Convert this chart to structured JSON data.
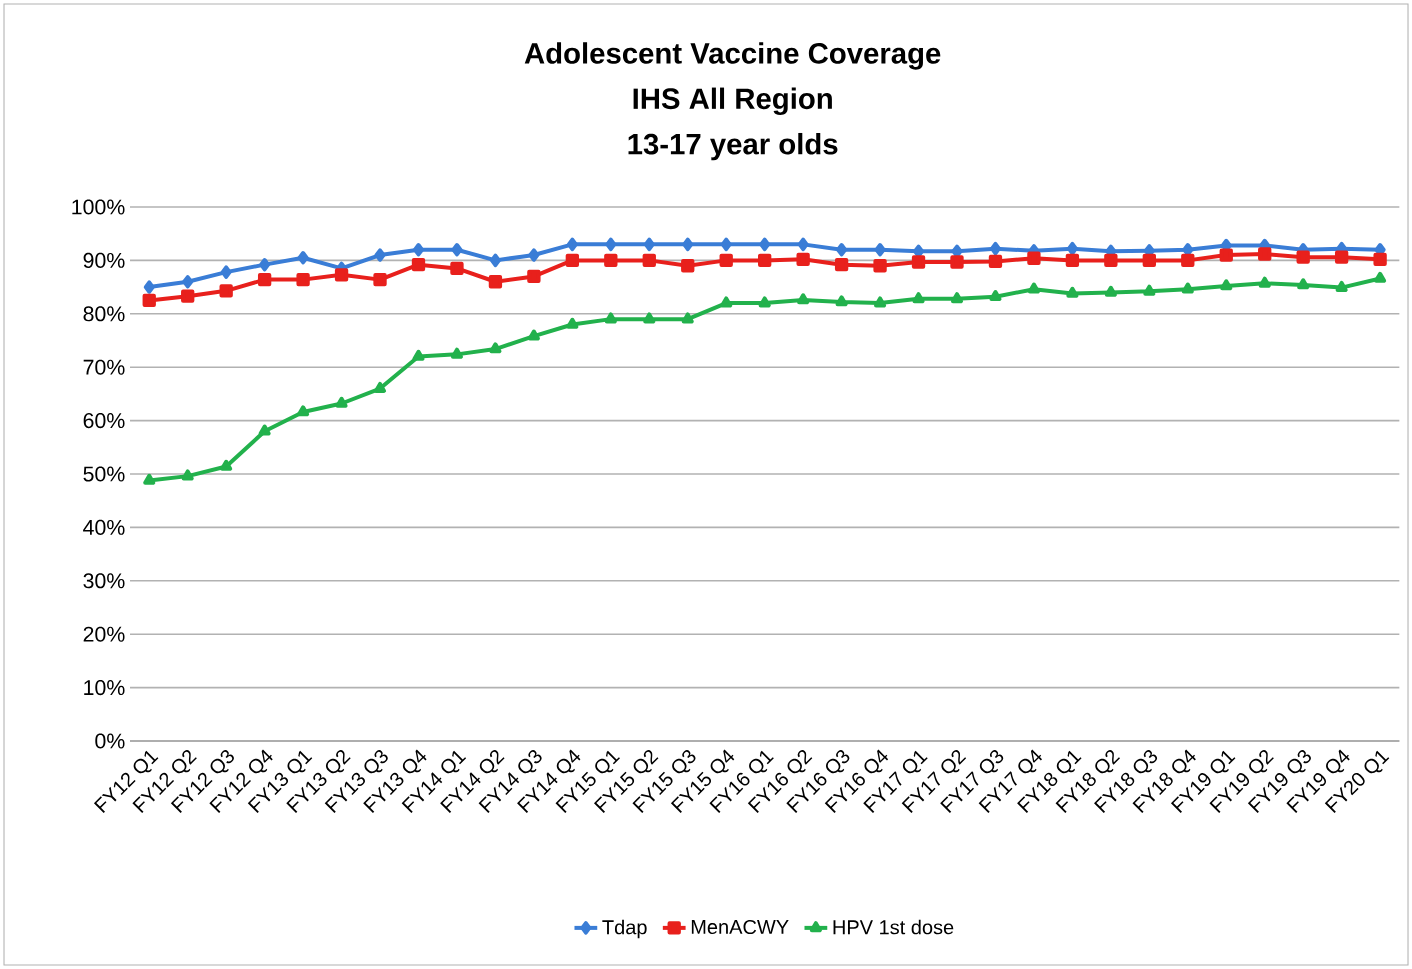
{
  "chart_data": {
    "type": "line",
    "title": "Adolescent Vaccine Coverage",
    "subtitle": "IHS All Region",
    "annotations": [
      "13-17 year olds"
    ],
    "categories": [
      "FY12 Q1",
      "FY12 Q2",
      "FY12 Q3",
      "FY12 Q4",
      "FY13 Q1",
      "FY13 Q2",
      "FY13 Q3",
      "FY13 Q4",
      "FY14 Q1",
      "FY14 Q2",
      "FY14 Q3",
      "FY14 Q4",
      "FY15 Q1",
      "FY15 Q2",
      "FY15 Q3",
      "FY15 Q4",
      "FY16 Q1",
      "FY16 Q2",
      "FY16 Q3",
      "FY16 Q4",
      "FY17 Q1",
      "FY17 Q2",
      "FY17 Q3",
      "FY17 Q4",
      "FY18 Q1",
      "FY18 Q2",
      "FY18 Q3",
      "FY18 Q4",
      "FY19 Q1",
      "FY19 Q2",
      "FY19 Q3",
      "FY19 Q4",
      "FY20 Q1"
    ],
    "series": [
      {
        "name": "Tdap",
        "color": "#3a7dd6",
        "marker": "diamond",
        "values": [
          85,
          86,
          87.8,
          89.2,
          90.5,
          88.5,
          91,
          92,
          92,
          90,
          91,
          93,
          93,
          93,
          93,
          93,
          93,
          93,
          92,
          92,
          91.7,
          91.7,
          92.2,
          91.8,
          92.2,
          91.7,
          91.8,
          92,
          92.8,
          92.8,
          92,
          92.2,
          92
        ]
      },
      {
        "name": "MenACWY",
        "color": "#e8201c",
        "marker": "square",
        "values": [
          82.5,
          83.3,
          84.3,
          86.4,
          86.4,
          87.3,
          86.4,
          89.2,
          88.5,
          86,
          87,
          90,
          90,
          90,
          89,
          90,
          90,
          90.2,
          89.2,
          89,
          89.7,
          89.7,
          89.8,
          90.4,
          90,
          90,
          90,
          90,
          91,
          91.2,
          90.6,
          90.6,
          90.2
        ]
      },
      {
        "name": "HPV 1st dose",
        "color": "#22b14c",
        "marker": "triangle",
        "values": [
          48.8,
          49.6,
          51.4,
          58,
          61.6,
          63.2,
          66,
          72,
          72.4,
          73.4,
          75.8,
          78,
          79,
          79,
          79,
          82,
          82,
          82.6,
          82.2,
          82,
          82.8,
          82.8,
          83.2,
          84.6,
          83.8,
          84,
          84.2,
          84.6,
          85.2,
          85.7,
          85.4,
          84.9,
          86.6
        ]
      }
    ],
    "ylim": [
      0,
      100
    ],
    "yticks": [
      {
        "value": 0,
        "label": "0%"
      },
      {
        "value": 10,
        "label": "10%"
      },
      {
        "value": 20,
        "label": "20%"
      },
      {
        "value": 30,
        "label": "30%"
      },
      {
        "value": 40,
        "label": "40%"
      },
      {
        "value": 50,
        "label": "50%"
      },
      {
        "value": 60,
        "label": "60%"
      },
      {
        "value": 70,
        "label": "70%"
      },
      {
        "value": 80,
        "label": "80%"
      },
      {
        "value": 90,
        "label": "90%"
      },
      {
        "value": 100,
        "label": "100%"
      }
    ],
    "grid": "y",
    "legend": "bottom",
    "line_style": "solid"
  }
}
